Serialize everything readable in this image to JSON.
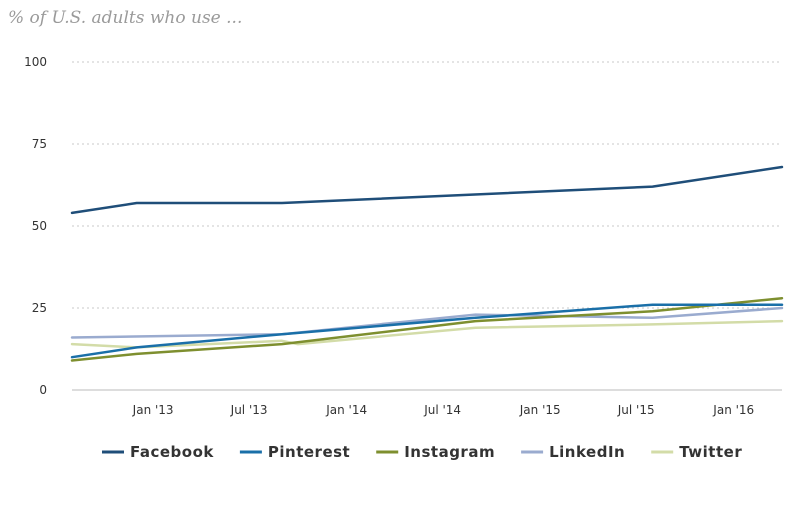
{
  "chart_data": {
    "type": "line",
    "title": "% of U.S. adults who use ...",
    "xlabel": "",
    "ylabel": "",
    "ylim": [
      0,
      100
    ],
    "yticks": [
      0,
      25,
      50,
      75,
      100
    ],
    "xrange": [
      "2012-08-01",
      "2016-04-01"
    ],
    "xticks": [
      {
        "label": "Jan '13",
        "date": "2013-01-01"
      },
      {
        "label": "Jul '13",
        "date": "2013-07-01"
      },
      {
        "label": "Jan '14",
        "date": "2014-01-01"
      },
      {
        "label": "Jul '14",
        "date": "2014-07-01"
      },
      {
        "label": "Jan '15",
        "date": "2015-01-01"
      },
      {
        "label": "Jul '15",
        "date": "2015-07-01"
      },
      {
        "label": "Jan '16",
        "date": "2016-01-01"
      }
    ],
    "grid": true,
    "legend_position": "bottom",
    "series": [
      {
        "name": "Facebook",
        "color": "#1f4e79",
        "points": [
          [
            "2012-08-01",
            54
          ],
          [
            "2012-12-01",
            57
          ],
          [
            "2013-09-01",
            57
          ],
          [
            "2015-08-01",
            62
          ],
          [
            "2016-04-01",
            68
          ]
        ]
      },
      {
        "name": "Pinterest",
        "color": "#1a6fa8",
        "points": [
          [
            "2012-08-01",
            10
          ],
          [
            "2012-12-01",
            13
          ],
          [
            "2013-09-01",
            17
          ],
          [
            "2014-09-01",
            22
          ],
          [
            "2015-08-01",
            26
          ],
          [
            "2016-04-01",
            26
          ]
        ]
      },
      {
        "name": "Instagram",
        "color": "#7e8f2f",
        "points": [
          [
            "2012-08-01",
            9
          ],
          [
            "2012-12-01",
            11
          ],
          [
            "2013-09-01",
            14
          ],
          [
            "2014-09-01",
            21
          ],
          [
            "2015-08-01",
            24
          ],
          [
            "2016-04-01",
            28
          ]
        ]
      },
      {
        "name": "LinkedIn",
        "color": "#9aabcf",
        "points": [
          [
            "2012-08-01",
            16
          ],
          [
            "2013-09-01",
            17
          ],
          [
            "2014-09-01",
            23
          ],
          [
            "2015-08-01",
            22
          ],
          [
            "2016-04-01",
            25
          ]
        ]
      },
      {
        "name": "Twitter",
        "color": "#d3dca8",
        "points": [
          [
            "2012-08-01",
            14
          ],
          [
            "2012-12-01",
            13
          ],
          [
            "2013-09-01",
            15
          ],
          [
            "2013-10-01",
            14
          ],
          [
            "2014-09-01",
            19
          ],
          [
            "2015-08-01",
            20
          ],
          [
            "2016-04-01",
            21
          ]
        ]
      }
    ]
  }
}
